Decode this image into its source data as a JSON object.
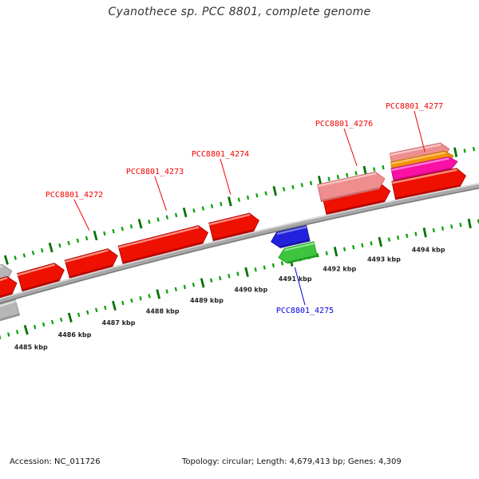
{
  "title": "Cyanothece sp. PCC 8801, complete genome",
  "footer": {
    "accession": "Accession: NC_011726",
    "stats": "Topology: circular; Length: 4,679,413 bp; Genes: 4,309"
  },
  "chart_data": {
    "type": "genome-map-arc",
    "description": "Zoomed segment of a circular genome shown as a shallow arc; forward-strand gene arrows above the backbone point right, reverse-strand arrows below point left; outer and inner green tick rulers; inner ruler carries position labels.",
    "ruler": {
      "unit_suffix": " kbp",
      "minor_interval_kbp": 0.2,
      "major_interval_kbp": 1.0,
      "visible_start_kbp": 4484.2,
      "visible_end_kbp": 4495.4,
      "major_labels": [
        4485,
        4486,
        4487,
        4488,
        4489,
        4490,
        4491,
        4492,
        4493,
        4494
      ]
    },
    "genes": [
      {
        "label": null,
        "color": "gray",
        "strand": "+",
        "lane": "f2",
        "start_kbp": 4483.8,
        "end_kbp": 4485.05
      },
      {
        "label": null,
        "color": "gray",
        "strand": "-",
        "lane": "r1",
        "start_kbp": 4483.6,
        "end_kbp": 4484.95
      },
      {
        "label": null,
        "color": "red",
        "strand": "+",
        "lane": "f1",
        "start_kbp": 4484.25,
        "end_kbp": 4485.08
      },
      {
        "label": null,
        "color": "red",
        "strand": "+",
        "lane": "f1",
        "start_kbp": 4485.15,
        "end_kbp": 4486.15
      },
      {
        "label": "PCC8801_4272",
        "color": "red",
        "strand": "+",
        "lane": "f1",
        "start_kbp": 4486.22,
        "end_kbp": 4487.35
      },
      {
        "label": "PCC8801_4273",
        "color": "red",
        "strand": "+",
        "lane": "f1",
        "start_kbp": 4487.42,
        "end_kbp": 4489.38
      },
      {
        "label": "PCC8801_4274",
        "color": "red",
        "strand": "+",
        "lane": "f1",
        "start_kbp": 4489.45,
        "end_kbp": 4490.52
      },
      {
        "label": "PCC8801_4275",
        "color": "blue",
        "strand": "-",
        "lane": "r1",
        "start_kbp": 4490.67,
        "end_kbp": 4491.5
      },
      {
        "label": null,
        "color": "green",
        "strand": "-",
        "lane": "r2",
        "start_kbp": 4490.75,
        "end_kbp": 4491.58
      },
      {
        "label": null,
        "color": "red",
        "strand": "+",
        "lane": "f1",
        "start_kbp": 4491.98,
        "end_kbp": 4493.44
      },
      {
        "label": "PCC8801_4276",
        "color": "salmon",
        "strand": "+",
        "lane": "f2",
        "start_kbp": 4491.93,
        "end_kbp": 4493.38
      },
      {
        "label": "PCC8801_4277",
        "color": "salmon",
        "strand": "+",
        "lane": "f5",
        "start_kbp": 4493.6,
        "end_kbp": 4494.88
      },
      {
        "label": null,
        "color": "orange",
        "strand": "+",
        "lane": "f4",
        "start_kbp": 4493.58,
        "end_kbp": 4494.94
      },
      {
        "label": null,
        "color": "magenta",
        "strand": "+",
        "lane": "f3",
        "start_kbp": 4493.56,
        "end_kbp": 4495.0
      },
      {
        "label": null,
        "color": "red",
        "strand": "+",
        "lane": "f1",
        "start_kbp": 4493.52,
        "end_kbp": 4495.12
      }
    ]
  },
  "colors": {
    "red": {
      "main": "#ee1000",
      "hi": "#ff8f7d",
      "lo": "#a30000"
    },
    "salmon": {
      "main": "#ef8e8e",
      "hi": "#f8c6c6",
      "lo": "#c25e5e"
    },
    "orange": {
      "main": "#f39104",
      "hi": "#ffc269",
      "lo": "#b56b00"
    },
    "magenta": {
      "main": "#fa10a5",
      "hi": "#ff7dd2",
      "lo": "#b50b78"
    },
    "blue": {
      "main": "#2222dc",
      "hi": "#7b7bf0",
      "lo": "#12128f"
    },
    "green": {
      "main": "#3ec43e",
      "hi": "#92e492",
      "lo": "#119111"
    },
    "gray": {
      "main": "#b6b6b6",
      "hi": "#e0e0e0",
      "lo": "#878787"
    },
    "backbone": {
      "main": "#a9a9a9",
      "hi": "#dadada",
      "lo": "#7c7c7c"
    },
    "tick_minor": "#00a000",
    "tick_major": "#007300",
    "tick_label": "#222222",
    "label_red": "#f40000",
    "label_blue": "#0000e0",
    "title": "#333333",
    "footer": "#111111"
  }
}
